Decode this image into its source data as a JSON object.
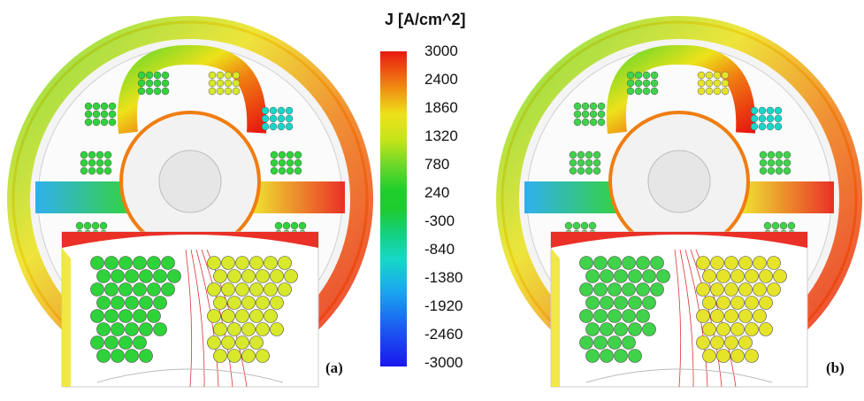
{
  "colorbar": {
    "title": "J [A/cm^2]",
    "ticks": [
      "3000",
      "2400",
      "1860",
      "1320",
      "780",
      "240",
      "-300",
      "-840",
      "-1380",
      "-1920",
      "-2460",
      "-3000"
    ],
    "colors": [
      "#e8190f",
      "#f07d12",
      "#ede21a",
      "#6ed82a",
      "#1fcc2f",
      "#17d8c8",
      "#1aa7ee",
      "#1a17ee"
    ]
  },
  "panels": [
    {
      "label": "(a)",
      "coil_left_color": "#2ed33a",
      "coil_right_color": "#d8e82a"
    },
    {
      "label": "(b)",
      "coil_left_color": "#3fd24a",
      "coil_right_color": "#e6e42a"
    }
  ]
}
